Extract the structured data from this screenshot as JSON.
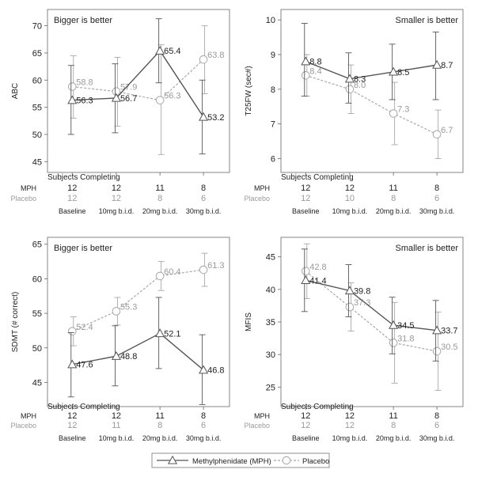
{
  "chart_data": [
    {
      "type": "line",
      "corner_note": "Bigger is better",
      "ylabel": "ABC",
      "ylim": [
        43,
        73
      ],
      "yticks": [
        45,
        50,
        55,
        60,
        65,
        70
      ],
      "categories": [
        "Baseline",
        "10mg b.i.d.",
        "20mg b.i.d.",
        "30mg b.i.d."
      ],
      "series": [
        {
          "name": "Methylphenidate (MPH)",
          "values": [
            56.3,
            56.7,
            65.4,
            53.2
          ],
          "labels": [
            "56.3",
            "56.7",
            "65.4",
            "53.2"
          ],
          "err_low": [
            50.0,
            50.3,
            59.5,
            46.4
          ],
          "err_high": [
            62.7,
            63.0,
            71.3,
            60.0
          ]
        },
        {
          "name": "Placebo",
          "values": [
            58.8,
            57.9,
            56.3,
            63.8
          ],
          "labels": [
            "58.8",
            "57.9",
            "56.3",
            "63.8"
          ],
          "err_low": [
            53.0,
            51.5,
            46.3,
            57.5
          ],
          "err_high": [
            64.5,
            64.2,
            66.5,
            70.0
          ]
        }
      ],
      "completing_title": "Subjects Completing",
      "completing": {
        "MPH": [
          "12",
          "12",
          "11",
          "8"
        ],
        "Placebo": [
          "12",
          "12",
          "8",
          "6"
        ]
      }
    },
    {
      "type": "line",
      "corner_note": "Smaller is better",
      "ylabel": "T25FW (sec#)",
      "ylim": [
        5.6,
        10.3
      ],
      "yticks": [
        6,
        7,
        8,
        9,
        10
      ],
      "categories": [
        "Baseline",
        "10mg b.i.d.",
        "20mg b.i.d.",
        "30mg b.i.d."
      ],
      "series": [
        {
          "name": "Methylphenidate (MPH)",
          "values": [
            8.8,
            8.3,
            8.5,
            8.7
          ],
          "labels": [
            "8.8",
            "8.3",
            "8.5",
            "8.7"
          ],
          "err_low": [
            7.8,
            7.6,
            7.7,
            7.7
          ],
          "err_high": [
            9.9,
            9.05,
            9.3,
            9.65
          ]
        },
        {
          "name": "Placebo",
          "values": [
            8.4,
            8.0,
            7.3,
            6.7
          ],
          "labels": [
            "8.4",
            "8.0",
            "7.3",
            "6.7"
          ],
          "err_low": [
            7.8,
            7.3,
            6.4,
            6.0
          ],
          "err_high": [
            9.0,
            8.7,
            8.2,
            7.4
          ]
        }
      ],
      "completing_title": "Subjects Completing",
      "completing": {
        "MPH": [
          "12",
          "12",
          "11",
          "8"
        ],
        "Placebo": [
          "12",
          "10",
          "8",
          "6"
        ]
      }
    },
    {
      "type": "line",
      "corner_note": "Bigger is better",
      "ylabel": "SDMT (# correct)",
      "ylim": [
        41.5,
        66
      ],
      "yticks": [
        45,
        50,
        55,
        60,
        65
      ],
      "categories": [
        "Baseline",
        "10mg b.i.d.",
        "20mg b.i.d.",
        "30mg b.i.d."
      ],
      "series": [
        {
          "name": "Methylphenidate (MPH)",
          "values": [
            47.6,
            48.8,
            52.1,
            46.8
          ],
          "labels": [
            "47.6",
            "48.8",
            "52.1",
            "46.8"
          ],
          "err_low": [
            42.9,
            44.5,
            47.0,
            41.8
          ],
          "err_high": [
            52.2,
            53.2,
            57.3,
            51.9
          ]
        },
        {
          "name": "Placebo",
          "values": [
            52.4,
            55.3,
            60.4,
            61.3
          ],
          "labels": [
            "52.4",
            "55.3",
            "60.4",
            "61.3"
          ],
          "err_low": [
            50.3,
            53.3,
            58.3,
            58.9
          ],
          "err_high": [
            54.5,
            57.3,
            62.5,
            63.7
          ]
        }
      ],
      "completing_title": "Subjects Completing",
      "completing": {
        "MPH": [
          "12",
          "12",
          "11",
          "8"
        ],
        "Placebo": [
          "12",
          "11",
          "8",
          "6"
        ]
      }
    },
    {
      "type": "line",
      "corner_note": "Smaller is better",
      "ylabel": "MFIS",
      "ylim": [
        22,
        48
      ],
      "yticks": [
        25,
        30,
        35,
        40,
        45
      ],
      "categories": [
        "Baseline",
        "10mg b.i.d.",
        "20mg b.i.d.",
        "30mg b.i.d."
      ],
      "series": [
        {
          "name": "Methylphenidate (MPH)",
          "values": [
            41.4,
            39.8,
            34.5,
            33.7
          ],
          "labels": [
            "41.4",
            "39.8",
            "34.5",
            "33.7"
          ],
          "err_low": [
            36.6,
            35.8,
            30.1,
            29.0
          ],
          "err_high": [
            46.2,
            43.8,
            38.8,
            38.3
          ]
        },
        {
          "name": "Placebo",
          "values": [
            42.8,
            37.3,
            31.8,
            30.5
          ],
          "labels": [
            "42.8",
            "37.3",
            "31.8",
            "30.5"
          ],
          "err_low": [
            38.6,
            33.6,
            25.6,
            24.5
          ],
          "err_high": [
            47.0,
            41.0,
            38.0,
            36.5
          ]
        }
      ],
      "completing_title": "Subjects Completing",
      "completing": {
        "MPH": [
          "12",
          "12",
          "11",
          "8"
        ],
        "Placebo": [
          "12",
          "12",
          "8",
          "6"
        ]
      }
    }
  ],
  "legend": {
    "items": [
      {
        "label": "Methylphenidate (MPH)",
        "color": "#555555",
        "marker": "triangle-icon",
        "dashed": false
      },
      {
        "label": "Placebo",
        "color": "#a8a8a8",
        "marker": "circle-icon",
        "dashed": true
      }
    ]
  },
  "colors": {
    "mph": "#555555",
    "placebo": "#a8a8a8",
    "axis": "#666666",
    "text": "#222222"
  }
}
